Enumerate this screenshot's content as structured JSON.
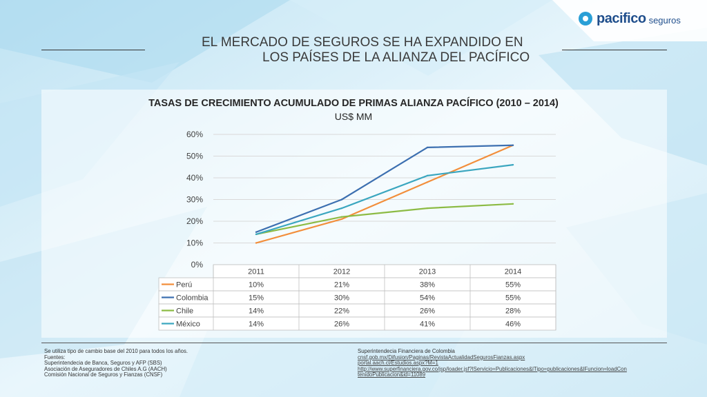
{
  "brand": {
    "name": "pacifico",
    "sub": "seguros"
  },
  "slide": {
    "title_line1": "EL MERCADO DE SEGUROS SE HA EXPANDIDO EN",
    "title_line2": "LOS PAÍSES DE LA ALIANZA DEL PACÍFICO"
  },
  "chart_data": {
    "type": "line",
    "title": "TASAS DE CRECIMIENTO ACUMULADO DE PRIMAS ALIANZA PACÍFICO  (2010 – 2014)",
    "subtitle": "US$ MM",
    "categories": [
      "2011",
      "2012",
      "2013",
      "2014"
    ],
    "yticks": [
      "0%",
      "10%",
      "20%",
      "30%",
      "40%",
      "50%",
      "60%"
    ],
    "ylim": [
      0,
      60
    ],
    "grid": true,
    "legend": "data-table",
    "series": [
      {
        "name": "Perú",
        "color": "#f28e3b",
        "values": [
          10,
          21,
          38,
          55
        ],
        "labels": [
          "10%",
          "21%",
          "38%",
          "55%"
        ]
      },
      {
        "name": "Colombia",
        "color": "#3c6fb0",
        "values": [
          15,
          30,
          54,
          55
        ],
        "labels": [
          "15%",
          "30%",
          "54%",
          "55%"
        ]
      },
      {
        "name": "Chile",
        "color": "#8cbb44",
        "values": [
          14,
          22,
          26,
          28
        ],
        "labels": [
          "14%",
          "22%",
          "26%",
          "28%"
        ]
      },
      {
        "name": "México",
        "color": "#3aa6bf",
        "values": [
          14,
          26,
          41,
          46
        ],
        "labels": [
          "14%",
          "26%",
          "41%",
          "46%"
        ]
      }
    ]
  },
  "footer": {
    "left": [
      "Se utiliza tipo de cambio base del 2010 para todos los años.",
      "Fuentes:",
      "Superintendecia de Banca, Seguros y AFP (SBS)",
      "Asociación de Aseguradores de Chiles A.G (AACH)",
      "Comisión Nacional de Seguros y Fianzas (CNSF)"
    ],
    "right_heading": "Superintendecia Financiera de Colombia",
    "right_links": [
      "cnsf.gob.mx/Difusion/Paginas/RevistaActualidadSegurosFianzas.aspx",
      "portal.aach.cl/Estudios.aspx?M=1",
      "http://www.superfinanciera.gov.co/jsp/loader.jsf?lServicio=Publicaciones&lTipo=publicaciones&lFuncion=loadCon",
      "tenidoPublicacion&id=11089"
    ]
  }
}
